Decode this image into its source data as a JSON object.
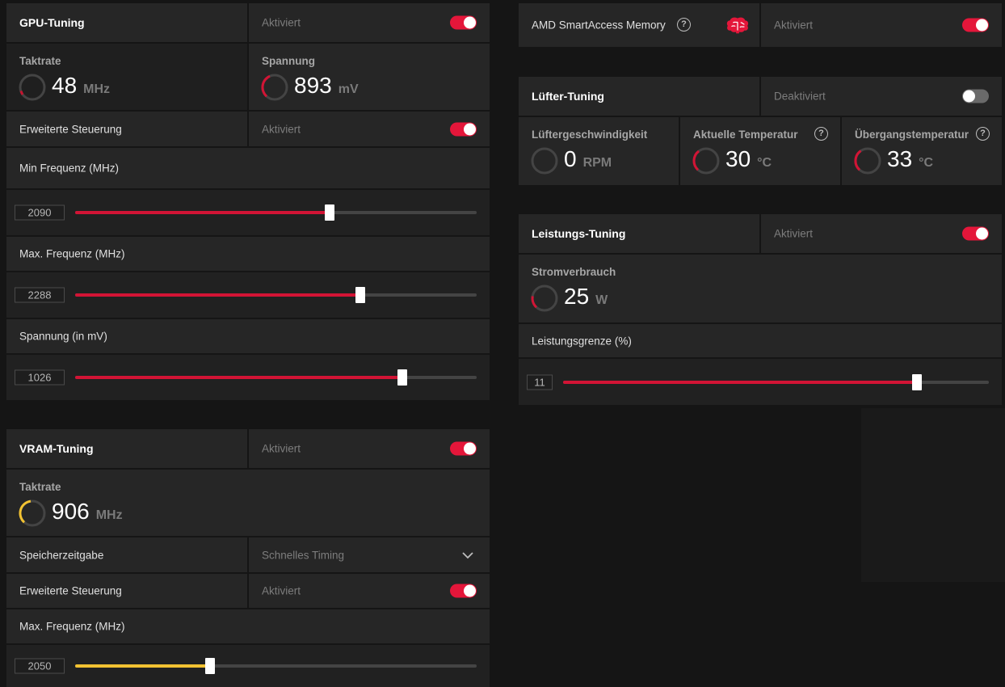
{
  "gpu_tuning": {
    "title": "GPU-Tuning",
    "status": "Aktiviert",
    "enabled": true,
    "clock": {
      "label": "Taktrate",
      "value": "48",
      "unit": "MHz",
      "gauge_color": "#c4142f"
    },
    "voltage": {
      "label": "Spannung",
      "value": "893",
      "unit": "mV",
      "gauge_color": "#d21435"
    },
    "advanced": {
      "label": "Erweiterte Steuerung",
      "status": "Aktiviert",
      "enabled": true
    },
    "sliders": [
      {
        "label": "Min Frequenz (MHz)",
        "value": "2090",
        "fraction": 0.633,
        "color": "#d21435"
      },
      {
        "label": "Max. Frequenz (MHz)",
        "value": "2288",
        "fraction": 0.711,
        "color": "#d21435"
      },
      {
        "label": "Spannung (in mV)",
        "value": "1026",
        "fraction": 0.815,
        "color": "#d21435"
      }
    ]
  },
  "vram_tuning": {
    "title": "VRAM-Tuning",
    "status": "Aktiviert",
    "enabled": true,
    "clock": {
      "label": "Taktrate",
      "value": "906",
      "unit": "MHz",
      "gauge_color": "#f2c232"
    },
    "memory_timing": {
      "label": "Speicherzeitgabe",
      "selected": "Schnelles Timing"
    },
    "advanced": {
      "label": "Erweiterte Steuerung",
      "status": "Aktiviert",
      "enabled": true
    },
    "slider": {
      "label": "Max. Frequenz (MHz)",
      "value": "2050",
      "fraction": 0.337,
      "color": "#f2c232"
    }
  },
  "smart_access": {
    "label": "AMD SmartAccess Memory",
    "status": "Aktiviert",
    "enabled": true,
    "icon": "brain-icon",
    "icon_color": "#e4163a"
  },
  "fan_tuning": {
    "title": "Lüfter-Tuning",
    "status": "Deaktiviert",
    "enabled": false,
    "metrics": [
      {
        "label": "Lüftergeschwindigkeit",
        "value": "0",
        "unit": "RPM",
        "help": false,
        "gauge_color": "#5a5a5a"
      },
      {
        "label": "Aktuelle Temperatur",
        "value": "30",
        "unit": "°C",
        "help": true,
        "gauge_color": "#d21435"
      },
      {
        "label": "Übergangstemperatur",
        "value": "33",
        "unit": "°C",
        "help": true,
        "gauge_color": "#d21435"
      }
    ]
  },
  "power_tuning": {
    "title": "Leistungs-Tuning",
    "status": "Aktiviert",
    "enabled": true,
    "consumption": {
      "label": "Stromverbrauch",
      "value": "25",
      "unit": "W",
      "gauge_color": "#d21435"
    },
    "limit": {
      "label": "Leistungsgrenze (%)",
      "value": "11",
      "fraction": 0.831,
      "color": "#d21435"
    }
  },
  "help_glyph": "?"
}
